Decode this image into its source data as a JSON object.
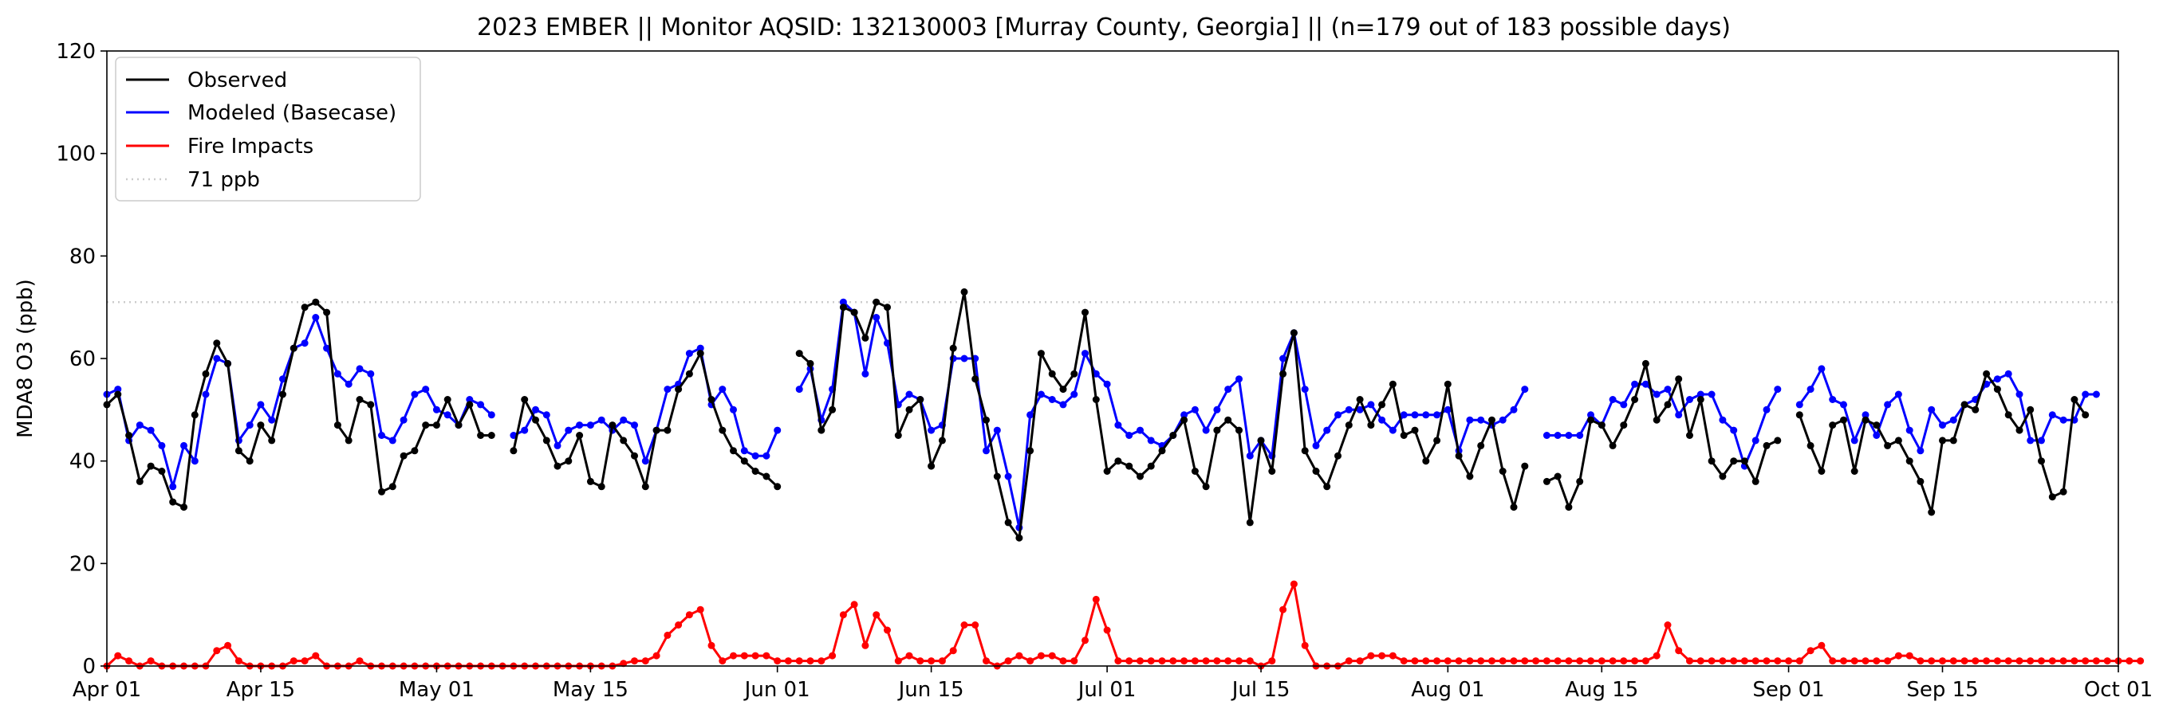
{
  "chart_data": {
    "type": "line",
    "title": "2023 EMBER || Monitor AQSID: 132130003 [Murray County, Georgia] || (n=179 out of 183 possible days)",
    "ylabel": "MDA8 O3 (ppb)",
    "xlabel": "",
    "ylim": [
      0,
      120
    ],
    "yticks": [
      0,
      20,
      40,
      60,
      80,
      100,
      120
    ],
    "xlim": [
      "2023-04-01",
      "2023-10-01"
    ],
    "xticks": [
      {
        "date": "2023-04-01",
        "label": "Apr 01"
      },
      {
        "date": "2023-04-15",
        "label": "Apr 15"
      },
      {
        "date": "2023-05-01",
        "label": "May 01"
      },
      {
        "date": "2023-05-15",
        "label": "May 15"
      },
      {
        "date": "2023-06-01",
        "label": "Jun 01"
      },
      {
        "date": "2023-06-15",
        "label": "Jun 15"
      },
      {
        "date": "2023-07-01",
        "label": "Jul 01"
      },
      {
        "date": "2023-07-15",
        "label": "Jul 15"
      },
      {
        "date": "2023-08-01",
        "label": "Aug 01"
      },
      {
        "date": "2023-08-15",
        "label": "Aug 15"
      },
      {
        "date": "2023-09-01",
        "label": "Sep 01"
      },
      {
        "date": "2023-09-15",
        "label": "Sep 15"
      },
      {
        "date": "2023-10-01",
        "label": "Oct 01"
      }
    ],
    "grid": false,
    "legend_position": "upper-left",
    "x_start": "2023-04-01",
    "threshold": {
      "name": "71 ppb",
      "value": 71,
      "color": "#cccccc",
      "style": "dotted"
    },
    "series": [
      {
        "name": "Observed",
        "color": "#000000",
        "values": [
          51,
          53,
          45,
          36,
          39,
          38,
          32,
          31,
          49,
          57,
          63,
          59,
          42,
          40,
          47,
          44,
          53,
          62,
          70,
          71,
          69,
          47,
          44,
          52,
          51,
          34,
          35,
          41,
          42,
          47,
          47,
          52,
          47,
          51,
          45,
          45,
          44,
          42,
          52,
          48,
          44,
          39,
          40,
          45,
          36,
          35,
          47,
          44,
          41,
          35,
          46,
          46,
          54,
          57,
          61,
          52,
          46,
          42,
          40,
          38,
          37,
          35,
          38,
          61,
          59,
          46,
          50,
          70,
          69,
          64,
          71,
          70,
          45,
          50,
          52,
          39,
          44,
          62,
          73,
          56,
          48,
          37,
          28,
          25,
          42,
          61,
          57,
          54,
          57,
          69,
          52,
          38,
          40,
          39,
          37,
          39,
          42,
          45,
          48,
          38,
          35,
          46,
          48,
          46,
          28,
          44,
          38,
          57,
          65,
          42,
          38,
          35,
          41,
          47,
          52,
          47,
          51,
          55,
          45,
          46,
          40,
          44,
          55,
          41,
          37,
          43,
          48,
          38,
          31,
          39,
          46,
          36,
          37,
          31,
          36,
          48,
          47,
          43,
          47,
          52,
          59,
          48,
          51,
          56,
          45,
          52,
          40,
          37,
          40,
          40,
          36,
          43,
          44,
          36,
          49,
          43,
          38,
          47,
          48,
          38,
          48,
          47,
          43,
          44,
          40,
          36,
          30,
          44,
          44,
          51,
          50,
          57,
          54,
          49,
          46,
          50,
          40,
          33,
          34,
          52,
          49
        ],
        "gaps": [
          36,
          62,
          130,
          153
        ]
      },
      {
        "name": "Modeled (Basecase)",
        "color": "#0000ff",
        "values": [
          53,
          54,
          44,
          47,
          46,
          43,
          35,
          43,
          40,
          53,
          60,
          59,
          44,
          47,
          51,
          48,
          56,
          62,
          63,
          68,
          62,
          57,
          55,
          58,
          57,
          45,
          44,
          48,
          53,
          54,
          50,
          49,
          47,
          52,
          51,
          49,
          45,
          45,
          46,
          50,
          49,
          43,
          46,
          47,
          47,
          48,
          46,
          48,
          47,
          40,
          46,
          54,
          55,
          61,
          62,
          51,
          54,
          50,
          42,
          41,
          41,
          46,
          48,
          54,
          58,
          48,
          54,
          71,
          69,
          57,
          68,
          63,
          51,
          53,
          52,
          46,
          47,
          60,
          60,
          60,
          42,
          46,
          37,
          27,
          49,
          53,
          52,
          51,
          53,
          61,
          57,
          55,
          47,
          45,
          46,
          44,
          43,
          45,
          49,
          50,
          46,
          50,
          54,
          56,
          41,
          44,
          41,
          60,
          65,
          54,
          43,
          46,
          49,
          50,
          50,
          51,
          48,
          46,
          49,
          49,
          49,
          49,
          50,
          42,
          48,
          48,
          47,
          48,
          50,
          54,
          43,
          45,
          45,
          45,
          45,
          49,
          47,
          52,
          51,
          55,
          55,
          53,
          54,
          49,
          52,
          53,
          53,
          48,
          46,
          39,
          44,
          50,
          54,
          53,
          51,
          54,
          58,
          52,
          51,
          44,
          49,
          45,
          51,
          53,
          46,
          42,
          50,
          47,
          48,
          51,
          52,
          55,
          56,
          57,
          53,
          44,
          44,
          49,
          48,
          48,
          53,
          53
        ],
        "gaps": [
          36,
          62,
          130,
          153
        ]
      },
      {
        "name": "Fire Impacts",
        "color": "#ff0000",
        "values": [
          0,
          2,
          1,
          0,
          1,
          0,
          0,
          0,
          0,
          0,
          3,
          4,
          1,
          0,
          0,
          0,
          0,
          1,
          1,
          2,
          0,
          0,
          0,
          1,
          0,
          0,
          0,
          0,
          0,
          0,
          0,
          0,
          0,
          0,
          0,
          0,
          0,
          0,
          0,
          0,
          0,
          0,
          0,
          0,
          0,
          0,
          0,
          0.5,
          1,
          1,
          2,
          6,
          8,
          10,
          11,
          4,
          1,
          2,
          2,
          2,
          2,
          1,
          1,
          1,
          1,
          1,
          2,
          10,
          12,
          4,
          10,
          7,
          1,
          2,
          1,
          1,
          1,
          3,
          8,
          8,
          1,
          0,
          1,
          2,
          1,
          2,
          2,
          1,
          1,
          5,
          13,
          7,
          1,
          1,
          1,
          1,
          1,
          1,
          1,
          1,
          1,
          1,
          1,
          1,
          1,
          0,
          1,
          11,
          16,
          4,
          0,
          0,
          0,
          1,
          1,
          2,
          2,
          2,
          1,
          1,
          1,
          1,
          1,
          1,
          1,
          1,
          1,
          1,
          1,
          1,
          1,
          1,
          1,
          1,
          1,
          1,
          1,
          1,
          1,
          1,
          1,
          2,
          8,
          3,
          1,
          1,
          1,
          1,
          1,
          1,
          1,
          1,
          1,
          1,
          1,
          3,
          4,
          1,
          1,
          1,
          1,
          1,
          1,
          2,
          2,
          1,
          1,
          1,
          1,
          1,
          1,
          1,
          1,
          1,
          1,
          1,
          1,
          1,
          1,
          1,
          1,
          1,
          1,
          1,
          1,
          1
        ],
        "gaps": []
      }
    ]
  }
}
